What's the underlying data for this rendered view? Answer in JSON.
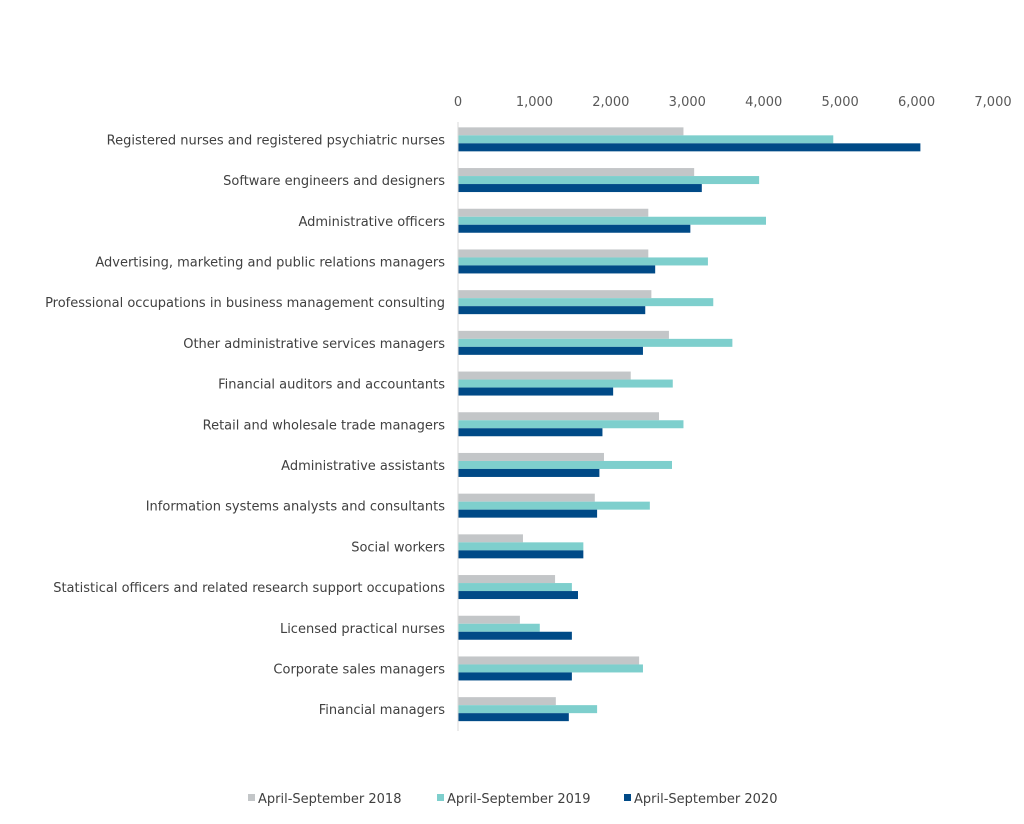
{
  "chart_data": {
    "type": "bar",
    "orientation": "horizontal",
    "title": "",
    "xlabel": "",
    "ylabel": "",
    "xlim": [
      0,
      7000
    ],
    "x_ticks": [
      "0",
      "1,000",
      "2,000",
      "3,000",
      "4,000",
      "5,000",
      "6,000",
      "7,000"
    ],
    "x_tick_values": [
      0,
      1000,
      2000,
      3000,
      4000,
      5000,
      6000,
      7000
    ],
    "grid": false,
    "legend_position": "bottom",
    "categories": [
      "Registered nurses and registered psychiatric nurses",
      "Software engineers and designers",
      "Administrative officers",
      "Advertising, marketing and public relations managers",
      "Professional occupations in business management consulting",
      "Other administrative services managers",
      "Financial auditors and accountants",
      "Retail and wholesale trade managers",
      "Administrative assistants",
      "Information systems analysts and consultants",
      "Social workers",
      "Statistical officers and related research support occupations",
      "Licensed practical nurses",
      "Corporate sales managers",
      "Financial managers"
    ],
    "series": [
      {
        "name": "April-September 2018",
        "color": "#c3c6c8",
        "values": [
          2950,
          3090,
          2490,
          2490,
          2530,
          2760,
          2260,
          2630,
          1910,
          1790,
          850,
          1270,
          810,
          2370,
          1280
        ]
      },
      {
        "name": "April-September 2019",
        "color": "#7ecfcd",
        "values": [
          4910,
          3940,
          4030,
          3270,
          3340,
          3590,
          2810,
          2950,
          2800,
          2510,
          1640,
          1490,
          1070,
          2420,
          1820
        ]
      },
      {
        "name": "April-September 2020",
        "color": "#004a87",
        "values": [
          6050,
          3190,
          3040,
          2580,
          2450,
          2420,
          2030,
          1890,
          1850,
          1820,
          1640,
          1570,
          1490,
          1490,
          1450
        ]
      }
    ]
  }
}
